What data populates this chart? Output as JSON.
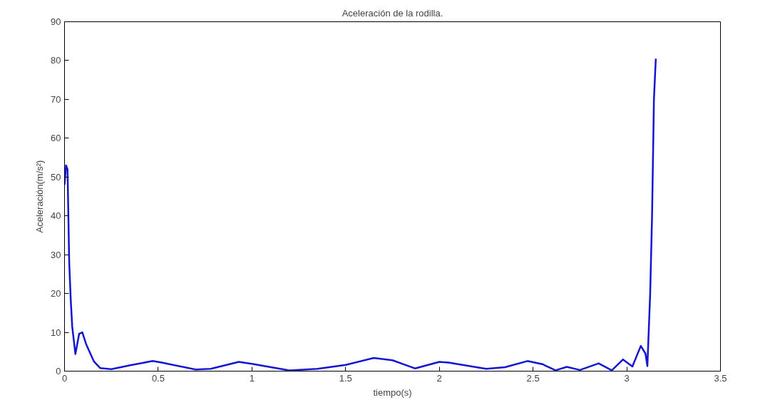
{
  "chart_data": {
    "type": "line",
    "title": "Aceleración de la rodilla.",
    "xlabel": "tiempo(s)",
    "ylabel": "Aceleración(m/s²)",
    "xlim": [
      0,
      3.5
    ],
    "ylim": [
      0,
      90
    ],
    "xticks": [
      0,
      0.5,
      1,
      1.5,
      2,
      2.5,
      3,
      3.5
    ],
    "yticks": [
      0,
      10,
      20,
      30,
      40,
      50,
      60,
      70,
      80,
      90
    ],
    "grid": false,
    "line_style": "solid",
    "series": [
      {
        "color": "#1414d2",
        "x": [
          0.0,
          0.008,
          0.016,
          0.025,
          0.033,
          0.041,
          0.058,
          0.078,
          0.095,
          0.115,
          0.157,
          0.19,
          0.25,
          0.35,
          0.47,
          0.52,
          0.7,
          0.78,
          0.93,
          1.0,
          1.2,
          1.35,
          1.5,
          1.65,
          1.75,
          1.87,
          2.0,
          2.05,
          2.25,
          2.35,
          2.47,
          2.55,
          2.62,
          2.68,
          2.75,
          2.85,
          2.92,
          2.98,
          3.03,
          3.075,
          3.1,
          3.11,
          3.125,
          3.135,
          3.145,
          3.155
        ],
        "values": [
          48,
          53,
          52,
          28,
          18.6,
          11.5,
          4.4,
          9.6,
          10,
          7,
          2.5,
          0.8,
          0.5,
          1.5,
          2.6,
          2.2,
          0.4,
          0.6,
          2.4,
          1.9,
          0.2,
          0.6,
          1.6,
          3.4,
          2.8,
          0.7,
          2.4,
          2.2,
          0.6,
          1.0,
          2.6,
          1.8,
          0.2,
          1.1,
          0.3,
          2.0,
          0.2,
          3.0,
          1.2,
          6.5,
          4.5,
          1.3,
          20,
          40,
          70,
          80.5
        ]
      }
    ]
  }
}
